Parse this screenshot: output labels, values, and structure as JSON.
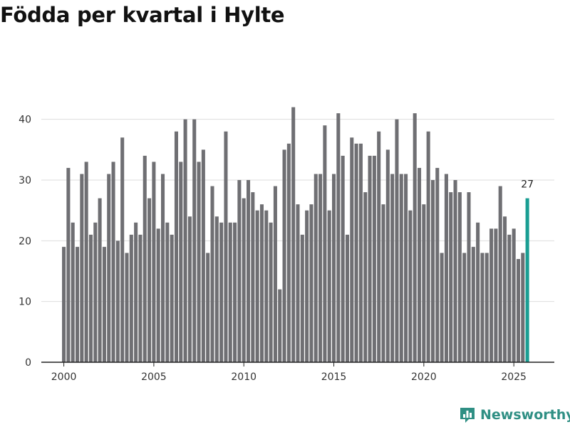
{
  "title": "Födda per kvartal i Hylte",
  "brand": {
    "name": "Newsworthy",
    "icon": "bar-chart-logo-icon",
    "color": "#2f8f84"
  },
  "chart_data": {
    "type": "bar",
    "title": "Födda per kvartal i Hylte",
    "xlabel": "",
    "ylabel": "",
    "x_start": 2000,
    "periods_per_year": 4,
    "xlim": [
      1998.75,
      2027.25
    ],
    "ylim": [
      0,
      45
    ],
    "xticks": [
      2000,
      2005,
      2010,
      2015,
      2020,
      2025
    ],
    "yticks": [
      0,
      10,
      20,
      30,
      40
    ],
    "grid": true,
    "colors": {
      "bars": "#6f6f73",
      "highlight": "#1a9e93",
      "grid": "#dddddd",
      "axis": "#222222"
    },
    "values": [
      19,
      32,
      23,
      19,
      31,
      33,
      21,
      23,
      27,
      19,
      31,
      33,
      20,
      37,
      18,
      21,
      23,
      21,
      34,
      27,
      33,
      22,
      31,
      23,
      21,
      38,
      33,
      40,
      24,
      40,
      33,
      35,
      18,
      29,
      24,
      23,
      38,
      23,
      23,
      30,
      27,
      30,
      28,
      25,
      26,
      25,
      23,
      29,
      12,
      35,
      36,
      42,
      26,
      21,
      25,
      26,
      31,
      31,
      39,
      25,
      31,
      41,
      34,
      21,
      37,
      36,
      36,
      28,
      34,
      34,
      38,
      26,
      35,
      31,
      40,
      31,
      31,
      25,
      41,
      32,
      26,
      38,
      30,
      32,
      18,
      31,
      28,
      30,
      28,
      18,
      28,
      19,
      23,
      18,
      18,
      22,
      22,
      29,
      24,
      21,
      22,
      17,
      18,
      27
    ],
    "highlight_index": 103,
    "highlight_label": "27"
  }
}
